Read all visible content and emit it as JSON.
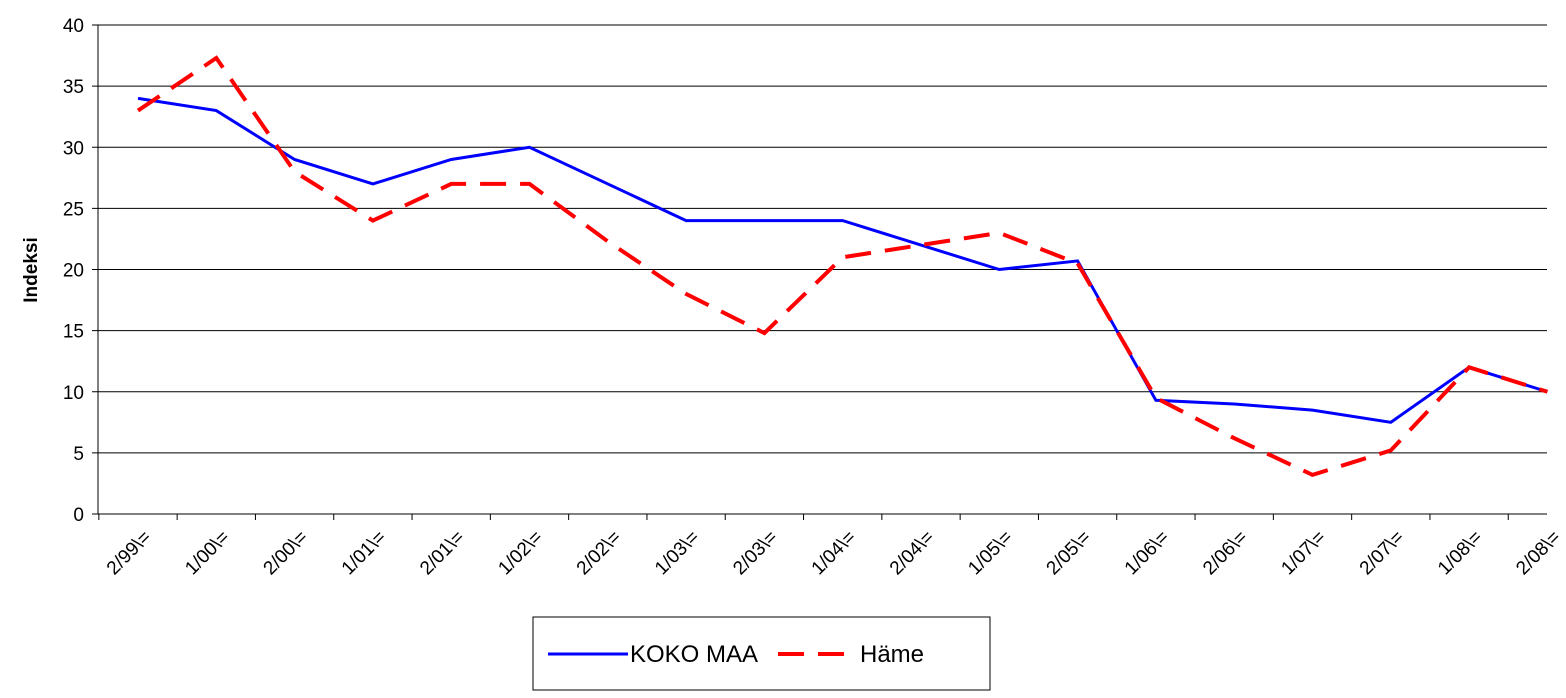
{
  "chart_data": {
    "type": "line",
    "y_label": "Indeksi",
    "categories": [
      "2/99\\=",
      "1/00\\=",
      "2/00\\=",
      "1/01\\=",
      "2/01\\=",
      "1/02\\=",
      "2/02\\=",
      "1/03\\=",
      "2/03\\=",
      "1/04\\=",
      "2/04\\=",
      "1/05\\=",
      "2/05\\=",
      "1/06\\=",
      "2/06\\=",
      "1/07\\=",
      "2/07\\=",
      "1/08\\=",
      "2/08\\="
    ],
    "series": [
      {
        "name": "KOKO MAA",
        "color": "#0000ff",
        "dash": false,
        "values": [
          34,
          33,
          29,
          27,
          29,
          30,
          27,
          24,
          24,
          24,
          22,
          20,
          20.7,
          9.3,
          9,
          8.5,
          7.5,
          12,
          10
        ]
      },
      {
        "name": "Häme",
        "color": "#ff0000",
        "dash": true,
        "values": [
          33,
          37.3,
          28,
          24,
          27,
          27,
          22.3,
          18,
          14.8,
          21,
          22,
          23,
          20.5,
          9.5,
          6.2,
          3.2,
          5.2,
          12,
          10
        ]
      }
    ],
    "ylim": [
      0,
      40
    ],
    "yticks": [
      0,
      5,
      10,
      15,
      20,
      25,
      30,
      35,
      40
    ],
    "grid": true
  }
}
